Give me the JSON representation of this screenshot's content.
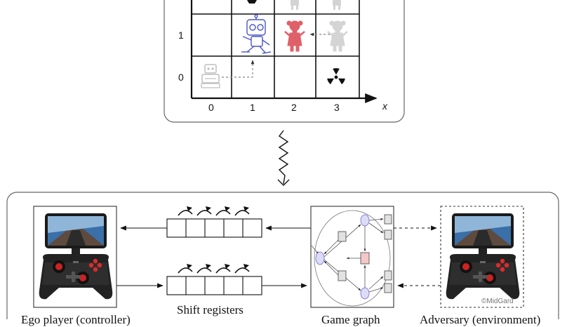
{
  "grid": {
    "y_ticks": [
      "1",
      "0"
    ],
    "x_ticks": [
      "0",
      "1",
      "2",
      "3"
    ],
    "x_axis_label": "x"
  },
  "labels": {
    "shift_registers": "Shift registers",
    "ego_player": "Ego player (controller)",
    "game_graph": "Game graph",
    "adversary": "Adversary (environment)",
    "watermark": "©MidGard"
  },
  "colors": {
    "robot_blue": "#4a56c8",
    "girl_red": "#e0606a",
    "faded": "#c8c8c8",
    "graph_state_fill": "#dcdcf6",
    "graph_red_fill": "#f4c8c8"
  }
}
